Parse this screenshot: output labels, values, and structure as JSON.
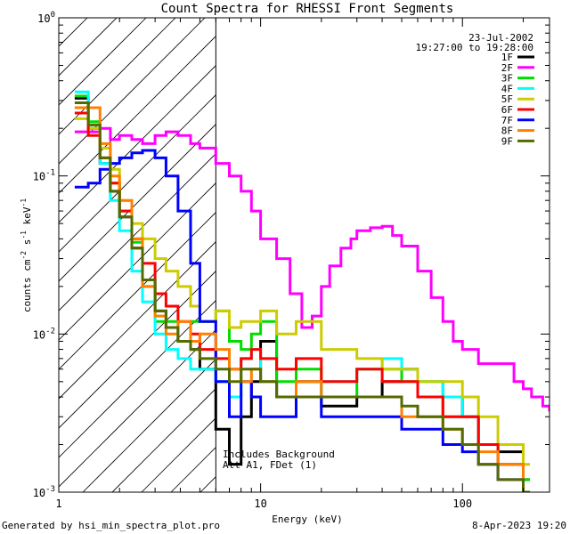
{
  "chart_data": {
    "type": "line",
    "title": "Count Spectra for RHESSI Front Segments",
    "xlabel": "Energy (keV)",
    "ylabel_parts": [
      "counts cm",
      "-2",
      " s",
      "-1",
      " keV",
      "-1"
    ],
    "xscale": "log",
    "yscale": "log",
    "xlim": [
      1,
      270
    ],
    "ylim": [
      0.001,
      1
    ],
    "x_ticks": [
      {
        "v": 1,
        "label": "1"
      },
      {
        "v": 10,
        "label": "10"
      },
      {
        "v": 100,
        "label": "100"
      }
    ],
    "y_ticks": [
      {
        "v": 1,
        "base": "10",
        "exp": "0"
      },
      {
        "v": 0.1,
        "base": "10",
        "exp": "-1"
      },
      {
        "v": 0.01,
        "base": "10",
        "exp": "-2"
      },
      {
        "v": 0.001,
        "base": "10",
        "exp": "-3"
      }
    ],
    "hatched_region": {
      "x_from": 1,
      "x_to": 6
    },
    "date": "23-Jul-2002",
    "time_range": "19:27:00 to 19:28:00",
    "annotations": [
      "Includes Background",
      "Att A1, FDet (1)"
    ],
    "legend_location": "top-right",
    "series": [
      {
        "name": "1F",
        "color": "#000000",
        "x": [
          1.2,
          1.4,
          1.6,
          1.8,
          2.0,
          2.3,
          2.6,
          3.0,
          3.4,
          3.9,
          4.5,
          5,
          6,
          7,
          8,
          9,
          10,
          12,
          15,
          20,
          30,
          40,
          50,
          60,
          80,
          100,
          120,
          150,
          200
        ],
        "y": [
          0.31,
          0.2,
          0.12,
          0.08,
          0.055,
          0.035,
          0.022,
          0.014,
          0.011,
          0.009,
          0.008,
          0.006,
          0.0025,
          0.0015,
          0.003,
          0.005,
          0.009,
          0.004,
          0.005,
          0.0035,
          0.004,
          0.005,
          0.006,
          0.004,
          0.004,
          0.003,
          0.002,
          0.0018,
          0.0012
        ]
      },
      {
        "name": "2F",
        "color": "#ff00ff",
        "x": [
          1.2,
          1.4,
          1.6,
          1.8,
          2.0,
          2.3,
          2.6,
          3.0,
          3.4,
          3.9,
          4.5,
          5,
          6,
          7,
          8,
          9,
          10,
          12,
          14,
          16,
          18,
          20,
          22,
          25,
          28,
          30,
          35,
          40,
          45,
          50,
          60,
          70,
          80,
          90,
          100,
          120,
          150,
          180,
          200,
          220,
          250,
          270
        ],
        "y": [
          0.19,
          0.19,
          0.2,
          0.17,
          0.18,
          0.17,
          0.16,
          0.18,
          0.19,
          0.18,
          0.16,
          0.15,
          0.12,
          0.1,
          0.08,
          0.06,
          0.04,
          0.03,
          0.018,
          0.011,
          0.013,
          0.02,
          0.027,
          0.035,
          0.04,
          0.045,
          0.047,
          0.048,
          0.042,
          0.036,
          0.025,
          0.017,
          0.012,
          0.009,
          0.008,
          0.0065,
          0.0065,
          0.005,
          0.0045,
          0.004,
          0.0035,
          0.0033
        ]
      },
      {
        "name": "3F",
        "color": "#00dd00",
        "x": [
          1.2,
          1.4,
          1.6,
          1.8,
          2.0,
          2.3,
          2.6,
          3.0,
          3.4,
          3.9,
          4.5,
          5,
          6,
          7,
          8,
          9,
          10,
          12,
          15,
          20,
          30,
          40,
          50,
          60,
          80,
          100,
          120,
          150,
          200
        ],
        "y": [
          0.32,
          0.22,
          0.13,
          0.09,
          0.06,
          0.038,
          0.02,
          0.012,
          0.012,
          0.009,
          0.012,
          0.012,
          0.014,
          0.009,
          0.008,
          0.01,
          0.012,
          0.005,
          0.006,
          0.004,
          0.006,
          0.006,
          0.005,
          0.005,
          0.003,
          0.003,
          0.002,
          0.0015,
          0.0012
        ]
      },
      {
        "name": "4F",
        "color": "#00ffff",
        "x": [
          1.2,
          1.4,
          1.6,
          1.8,
          2.0,
          2.3,
          2.6,
          3.0,
          3.4,
          3.9,
          4.5,
          5,
          6,
          7,
          8,
          9,
          10,
          12,
          15,
          20,
          30,
          40,
          50,
          60,
          80,
          100,
          120,
          150,
          200
        ],
        "y": [
          0.34,
          0.2,
          0.12,
          0.07,
          0.045,
          0.025,
          0.016,
          0.01,
          0.008,
          0.007,
          0.006,
          0.006,
          0.005,
          0.004,
          0.007,
          0.008,
          0.005,
          0.004,
          0.004,
          0.005,
          0.006,
          0.007,
          0.006,
          0.005,
          0.004,
          0.003,
          0.002,
          0.0015,
          0.001
        ]
      },
      {
        "name": "5F",
        "color": "#cccc00",
        "x": [
          1.2,
          1.4,
          1.6,
          1.8,
          2.0,
          2.3,
          2.6,
          3.0,
          3.4,
          3.9,
          4.5,
          5,
          6,
          7,
          8,
          9,
          10,
          12,
          15,
          20,
          30,
          40,
          50,
          60,
          80,
          100,
          120,
          150,
          200
        ],
        "y": [
          0.23,
          0.2,
          0.15,
          0.11,
          0.07,
          0.05,
          0.04,
          0.03,
          0.025,
          0.02,
          0.015,
          0.012,
          0.014,
          0.011,
          0.012,
          0.012,
          0.014,
          0.01,
          0.012,
          0.008,
          0.007,
          0.006,
          0.006,
          0.005,
          0.005,
          0.004,
          0.003,
          0.002,
          0.0015
        ]
      },
      {
        "name": "6F",
        "color": "#ff0000",
        "x": [
          1.2,
          1.4,
          1.6,
          1.8,
          2.0,
          2.3,
          2.6,
          3.0,
          3.4,
          3.9,
          4.5,
          5,
          6,
          7,
          8,
          9,
          10,
          12,
          15,
          20,
          30,
          40,
          50,
          60,
          80,
          100,
          120,
          150,
          200
        ],
        "y": [
          0.25,
          0.18,
          0.13,
          0.09,
          0.06,
          0.04,
          0.028,
          0.018,
          0.015,
          0.012,
          0.01,
          0.008,
          0.007,
          0.006,
          0.007,
          0.008,
          0.007,
          0.006,
          0.007,
          0.005,
          0.006,
          0.005,
          0.005,
          0.004,
          0.003,
          0.003,
          0.002,
          0.0015,
          0.001
        ]
      },
      {
        "name": "7F",
        "color": "#0000ff",
        "x": [
          1.2,
          1.4,
          1.6,
          1.8,
          2.0,
          2.3,
          2.6,
          3.0,
          3.4,
          3.9,
          4.5,
          5,
          6,
          7,
          8,
          9,
          10,
          12,
          15,
          20,
          30,
          40,
          50,
          60,
          80,
          100,
          120,
          150,
          200
        ],
        "y": [
          0.085,
          0.09,
          0.11,
          0.12,
          0.13,
          0.14,
          0.145,
          0.13,
          0.1,
          0.06,
          0.028,
          0.012,
          0.005,
          0.003,
          0.005,
          0.004,
          0.003,
          0.003,
          0.004,
          0.003,
          0.003,
          0.003,
          0.0025,
          0.0025,
          0.002,
          0.0018,
          0.0015,
          0.0012,
          0.001
        ]
      },
      {
        "name": "8F",
        "color": "#ff8000",
        "x": [
          1.2,
          1.4,
          1.6,
          1.8,
          2.0,
          2.3,
          2.6,
          3.0,
          3.4,
          3.9,
          4.5,
          5,
          6,
          7,
          8,
          9,
          10,
          12,
          15,
          20,
          30,
          40,
          50,
          60,
          80,
          100,
          120,
          150,
          200
        ],
        "y": [
          0.27,
          0.27,
          0.16,
          0.1,
          0.07,
          0.04,
          0.02,
          0.013,
          0.01,
          0.012,
          0.009,
          0.01,
          0.008,
          0.006,
          0.005,
          0.006,
          0.005,
          0.004,
          0.005,
          0.004,
          0.004,
          0.004,
          0.003,
          0.003,
          0.0025,
          0.002,
          0.0018,
          0.0015,
          0.001
        ]
      },
      {
        "name": "9F",
        "color": "#556b00",
        "x": [
          1.2,
          1.4,
          1.6,
          1.8,
          2.0,
          2.3,
          2.6,
          3.0,
          3.4,
          3.9,
          4.5,
          5,
          6,
          7,
          8,
          9,
          10,
          12,
          15,
          20,
          30,
          40,
          50,
          60,
          80,
          100,
          120,
          150,
          200
        ],
        "y": [
          0.29,
          0.21,
          0.13,
          0.08,
          0.055,
          0.035,
          0.022,
          0.014,
          0.011,
          0.009,
          0.008,
          0.007,
          0.006,
          0.005,
          0.006,
          0.006,
          0.005,
          0.004,
          0.004,
          0.004,
          0.004,
          0.004,
          0.0035,
          0.003,
          0.0025,
          0.002,
          0.0015,
          0.0012,
          0.001
        ]
      }
    ]
  },
  "footer": {
    "left": "Generated by hsi_min_spectra_plot.pro",
    "right": "8-Apr-2023 19:20"
  }
}
